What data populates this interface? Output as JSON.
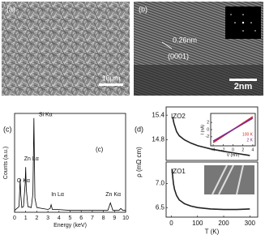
{
  "panels": {
    "a": {
      "label": "(a)",
      "scale": "10μm"
    },
    "b": {
      "label": "(b)",
      "spacing": "0.26nm",
      "plane": "(0001)",
      "scale": "2nm"
    },
    "c": {
      "label": "(c)"
    },
    "d": {
      "label": "(d)"
    }
  },
  "chart_data": [
    {
      "type": "line",
      "title": "(c)",
      "xlabel": "Energy (keV)",
      "ylabel": "Counts (a.u.)",
      "color": "#000000",
      "x": [
        0,
        0.2,
        0.4,
        0.5,
        0.55,
        0.65,
        0.8,
        0.95,
        1.0,
        1.05,
        1.2,
        1.5,
        1.65,
        1.74,
        1.83,
        2.0,
        2.5,
        3.0,
        3.2,
        3.29,
        3.4,
        3.8,
        5,
        7,
        8.4,
        8.63,
        8.85,
        9.4,
        9.57,
        9.75,
        10
      ],
      "values": [
        2,
        4,
        6,
        35,
        20,
        5,
        6,
        30,
        48,
        25,
        6,
        5,
        20,
        100,
        15,
        5,
        4,
        3,
        4,
        8,
        3,
        3,
        2,
        2,
        2,
        10,
        2,
        2,
        4,
        2,
        2
      ],
      "xlim": [
        0,
        10
      ],
      "ylim": [
        0,
        105
      ],
      "xticks": [
        0,
        1,
        2,
        3,
        4,
        5,
        6,
        7,
        8,
        9,
        10
      ],
      "annotations": [
        "Si Kα",
        "Zn Lα",
        "O Kα",
        "In Lα",
        "Zn Kα"
      ]
    },
    {
      "type": "line",
      "label": "IZO2",
      "color": "#222222",
      "x": [
        5,
        10,
        20,
        30,
        50,
        75,
        100,
        150,
        200,
        250,
        300
      ],
      "values": [
        15.35,
        15.2,
        15.0,
        14.9,
        14.8,
        14.72,
        14.66,
        14.58,
        14.52,
        14.47,
        14.42
      ],
      "xlim": [
        -20,
        330
      ],
      "ylim": [
        14.3,
        15.6
      ],
      "yticks": [
        15.4,
        14.8
      ]
    },
    {
      "type": "line",
      "label": "IZO1",
      "xlabel": "T (K)",
      "ylabel": "ρ (mΩ cm)",
      "color": "#222222",
      "x": [
        3,
        5,
        8,
        12,
        20,
        30,
        50,
        75,
        100,
        150,
        200,
        250,
        300
      ],
      "values": [
        7.3,
        7.15,
        7.0,
        6.88,
        6.75,
        6.66,
        6.58,
        6.53,
        6.5,
        6.47,
        6.46,
        6.46,
        6.47
      ],
      "xlim": [
        -20,
        330
      ],
      "ylim": [
        6.3,
        7.45
      ],
      "xticks": [
        0,
        100,
        200,
        300
      ],
      "yticks": [
        {
          "value": 7,
          "label": "7.0"
        },
        6.5
      ]
    },
    {
      "type": "line",
      "xlabel": "V (mV)",
      "ylabel": "I (nA)",
      "x": [
        -4,
        4
      ],
      "series": [
        {
          "name": "100 K",
          "color": "#d62728",
          "values": [
            -3.6,
            3.6
          ]
        },
        {
          "name": "2 K",
          "color": "#7b2f8f",
          "values": [
            -3.2,
            3.2
          ]
        }
      ],
      "xlim": [
        -4.5,
        4.5
      ],
      "ylim": [
        -4.5,
        4.5
      ],
      "xticks": [
        -4,
        -2,
        0,
        2,
        4
      ],
      "yticks": [
        2,
        0,
        -2
      ]
    }
  ]
}
